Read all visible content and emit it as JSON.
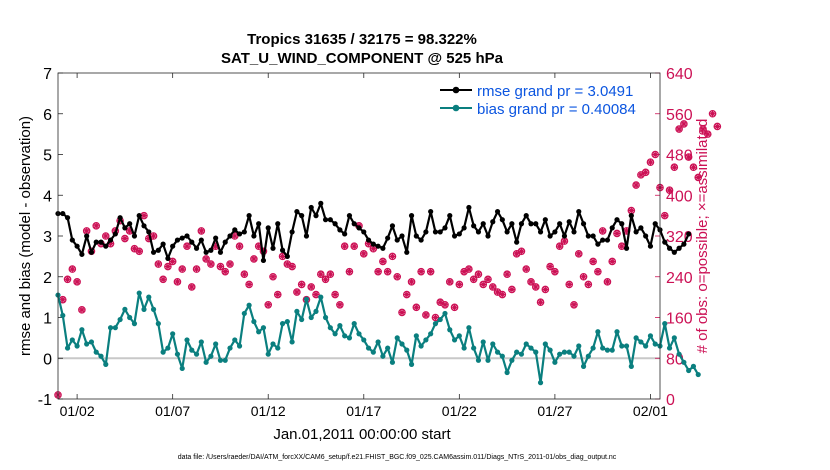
{
  "chart_data": {
    "type": "line",
    "title_line1": "Tropics 31635 / 32175 = 98.322%",
    "title_line2": "SAT_U_WIND_COMPONENT @ 525 hPa",
    "xlabel": "Jan.01,2011 00:00:00 start",
    "ylabel_left": "rmse and bias (model - observation)",
    "ylabel_right": "# of obs: o=possible; ×=assimilated",
    "footer": "data file: /Users/raeder/DAI/ATM_forcXX/CAM6_setup/f.e21.FHIST_BGC.f09_025.CAM6assim.011/Diags_NTrS_2011-01/obs_diag_output.nc",
    "x_range_days": [
      0.0,
      31.5
    ],
    "x_ticks": [
      {
        "day": 1,
        "label": "01/02"
      },
      {
        "day": 6,
        "label": "01/07"
      },
      {
        "day": 11,
        "label": "01/12"
      },
      {
        "day": 16,
        "label": "01/17"
      },
      {
        "day": 21,
        "label": "01/22"
      },
      {
        "day": 26,
        "label": "01/27"
      },
      {
        "day": 31,
        "label": "02/01"
      }
    ],
    "ylim_left": [
      -1,
      7
    ],
    "yticks_left": [
      "-1",
      "0",
      "1",
      "2",
      "3",
      "4",
      "5",
      "6",
      "7"
    ],
    "ylim_right": [
      0,
      640
    ],
    "yticks_right": [
      "0",
      "80",
      "160",
      "240",
      "320",
      "400",
      "480",
      "560",
      "640"
    ],
    "zero_line": 0,
    "time_step_days": 0.25,
    "series": [
      {
        "name": "rmse",
        "legend": "rmse grand pr = 3.0491",
        "color": "#000000",
        "values": [
          3.55,
          3.55,
          3.45,
          2.9,
          2.75,
          2.55,
          3.0,
          2.6,
          2.85,
          2.85,
          2.75,
          2.9,
          3.05,
          3.45,
          3.2,
          3.3,
          3.0,
          3.5,
          3.25,
          3.1,
          2.6,
          2.65,
          2.8,
          2.45,
          2.75,
          2.9,
          2.95,
          3.0,
          2.85,
          2.7,
          2.9,
          2.6,
          2.65,
          2.95,
          2.6,
          2.85,
          3.0,
          3.15,
          3.05,
          3.1,
          3.5,
          3.0,
          3.3,
          2.4,
          3.2,
          2.7,
          3.3,
          2.65,
          2.5,
          3.1,
          3.6,
          3.5,
          3.0,
          3.7,
          3.5,
          3.8,
          3.4,
          3.4,
          3.3,
          3.15,
          3.05,
          3.5,
          3.3,
          3.2,
          3.1,
          2.9,
          2.8,
          2.75,
          2.7,
          2.95,
          3.25,
          2.9,
          3.0,
          2.6,
          3.5,
          3.0,
          2.9,
          3.1,
          3.6,
          3.1,
          3.1,
          3.2,
          3.5,
          3.0,
          3.05,
          3.2,
          3.7,
          3.25,
          3.1,
          3.3,
          3.0,
          3.35,
          3.6,
          3.4,
          3.1,
          3.3,
          2.85,
          3.3,
          3.5,
          3.3,
          3.3,
          3.1,
          3.4,
          3.0,
          3.1,
          3.3,
          3.0,
          3.35,
          3.1,
          3.6,
          3.3,
          3.0,
          3.0,
          2.8,
          2.9,
          2.9,
          3.2,
          3.4,
          3.3,
          2.7,
          3.5,
          3.1,
          3.2,
          3.0,
          2.75,
          3.3,
          3.15,
          2.85,
          2.7,
          2.6,
          2.7,
          2.8,
          3.05
        ],
        "start_day": 0.0
      },
      {
        "name": "bias",
        "legend": "bias grand pr = 0.40084",
        "color": "#0a7f7f",
        "values": [
          1.55,
          1.05,
          0.25,
          0.45,
          0.3,
          0.7,
          0.35,
          0.4,
          0.15,
          0.05,
          -0.15,
          0.75,
          0.75,
          0.95,
          1.2,
          1.0,
          0.85,
          1.6,
          1.2,
          1.5,
          1.2,
          0.85,
          0.15,
          0.25,
          0.6,
          0.1,
          -0.25,
          0.45,
          0.2,
          0.1,
          0.4,
          -0.1,
          0.05,
          0.35,
          -0.05,
          -0.05,
          0.25,
          0.45,
          0.3,
          1.1,
          1.3,
          0.9,
          0.65,
          0.75,
          0.1,
          0.35,
          0.25,
          0.85,
          0.9,
          0.4,
          1.15,
          0.95,
          1.45,
          1.0,
          1.15,
          1.5,
          1.0,
          0.75,
          0.6,
          0.8,
          0.55,
          0.5,
          0.85,
          0.6,
          0.45,
          0.25,
          0.15,
          0.4,
          0.05,
          0.25,
          -0.1,
          0.5,
          0.35,
          0.2,
          -0.15,
          0.55,
          0.3,
          0.45,
          0.6,
          0.85,
          0.95,
          1.1,
          0.7,
          0.45,
          0.55,
          0.25,
          0.75,
          0.25,
          -0.05,
          0.4,
          -0.05,
          0.35,
          0.15,
          0.05,
          -0.35,
          -0.05,
          0.15,
          0.1,
          0.35,
          0.25,
          0.15,
          -0.6,
          0.35,
          0.2,
          -0.1,
          0.1,
          0.15,
          0.15,
          0.05,
          0.3,
          -0.2,
          0.05,
          0.25,
          0.65,
          0.25,
          0.2,
          0.2,
          0.65,
          0.3,
          0.3,
          -0.2,
          0.5,
          0.4,
          0.3,
          0.55,
          0.35,
          0.3,
          0.85,
          0.25,
          0.5,
          0.1,
          -0.1,
          -0.3,
          -0.2,
          -0.4
        ],
        "start_day": 0.0
      },
      {
        "name": "# obs possible",
        "color": "#cc1155",
        "axis": "right",
        "values": [
          8,
          195,
          235,
          255,
          230,
          175,
          330,
          290,
          340,
          305,
          320,
          305,
          330,
          350,
          315,
          330,
          295,
          290,
          360,
          315,
          320,
          265,
          235,
          260,
          270,
          230,
          255,
          300,
          220,
          255,
          330,
          275,
          265,
          300,
          260,
          250,
          265,
          320,
          300,
          245,
          225,
          275,
          300,
          290,
          185,
          240,
          205,
          280,
          265,
          260,
          210,
          225,
          195,
          220,
          205,
          245,
          235,
          245,
          205,
          185,
          300,
          250,
          300,
          340,
          285,
          305,
          295,
          250,
          270,
          250,
          280,
          240,
          170,
          205,
          230,
          180,
          250,
          165,
          250,
          160,
          190,
          185,
          230,
          180,
          225,
          250,
          255,
          235,
          245,
          225,
          235,
          220,
          210,
          205,
          245,
          215,
          285,
          290,
          255,
          230,
          220,
          190,
          215,
          260,
          250,
          300,
          310,
          225,
          185,
          285,
          240,
          225,
          270,
          250,
          330,
          230,
          270,
          325,
          300,
          330,
          370,
          420,
          440,
          445,
          465,
          480,
          415,
          360,
          410,
          455,
          530,
          540,
          475,
          455,
          435,
          530,
          520,
          560,
          535
        ],
        "start_day": 0.0
      }
    ]
  }
}
